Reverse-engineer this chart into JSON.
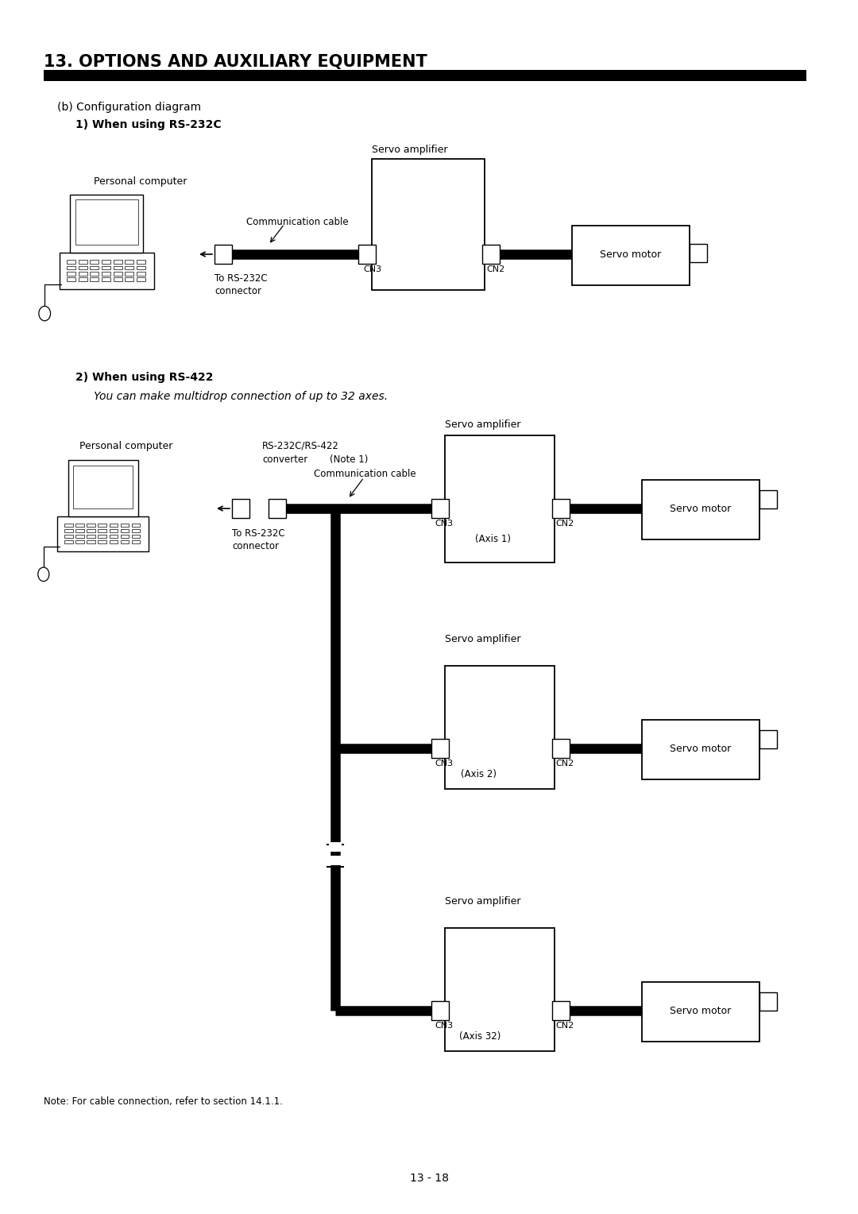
{
  "title": "13. OPTIONS AND AUXILIARY EQUIPMENT",
  "subtitle_b": "(b) Configuration diagram",
  "subtitle_1": "1) When using RS-232C",
  "subtitle_2": "2) When using RS-422",
  "subtitle_2b": "You can make multidrop connection of up to 32 axes.",
  "note": "Note: For cable connection, refer to section 14.1.1.",
  "page": "13 - 18",
  "bg_color": "#ffffff"
}
